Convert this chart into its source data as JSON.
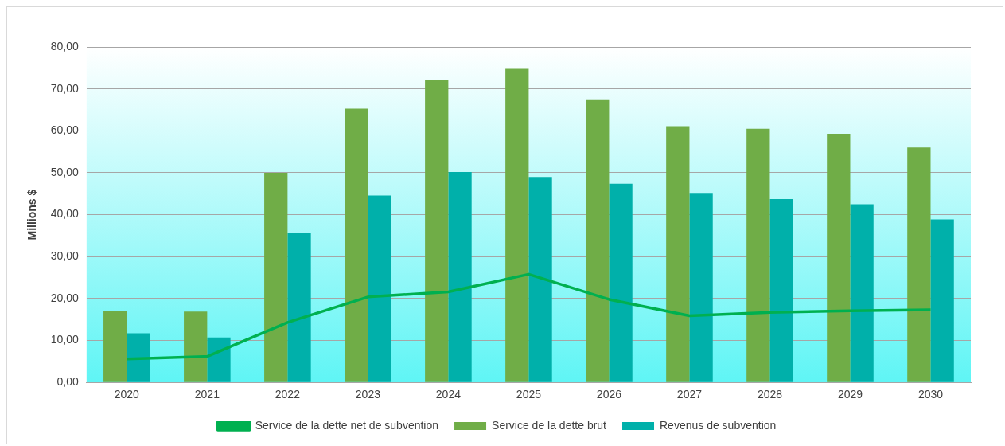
{
  "chart_data": {
    "type": "bar",
    "ylabel": "Millions $",
    "categories": [
      "2020",
      "2021",
      "2022",
      "2023",
      "2024",
      "2025",
      "2026",
      "2027",
      "2028",
      "2029",
      "2030"
    ],
    "series": [
      {
        "name": "Service de la dette brut",
        "color": "#70ad47",
        "values": [
          17.1,
          16.9,
          50.0,
          65.3,
          72.0,
          74.8,
          67.5,
          61.1,
          60.5,
          59.3,
          56.0
        ]
      },
      {
        "name": "Revenus de subvention",
        "color": "#00b0aa",
        "values": [
          11.7,
          10.7,
          35.7,
          44.6,
          50.2,
          49.0,
          47.4,
          45.2,
          43.7,
          42.5,
          38.9
        ]
      },
      {
        "name": "Service de la dette net de subvention",
        "type": "line",
        "color": "#00b050",
        "marker": "none",
        "values": [
          5.6,
          6.2,
          14.3,
          20.4,
          21.6,
          25.8,
          19.8,
          15.9,
          16.7,
          17.1,
          17.3
        ]
      }
    ],
    "ylim": [
      0,
      80
    ],
    "yticks": [
      {
        "value": 0,
        "label": "0,00"
      },
      {
        "value": 10,
        "label": "10,00"
      },
      {
        "value": 20,
        "label": "20,00"
      },
      {
        "value": 30,
        "label": "30,00"
      },
      {
        "value": 40,
        "label": "40,00"
      },
      {
        "value": 50,
        "label": "50,00"
      },
      {
        "value": 60,
        "label": "60,00"
      },
      {
        "value": 70,
        "label": "70,00"
      },
      {
        "value": 80,
        "label": "80,00"
      }
    ],
    "grid": "y",
    "legend": "bottom"
  }
}
